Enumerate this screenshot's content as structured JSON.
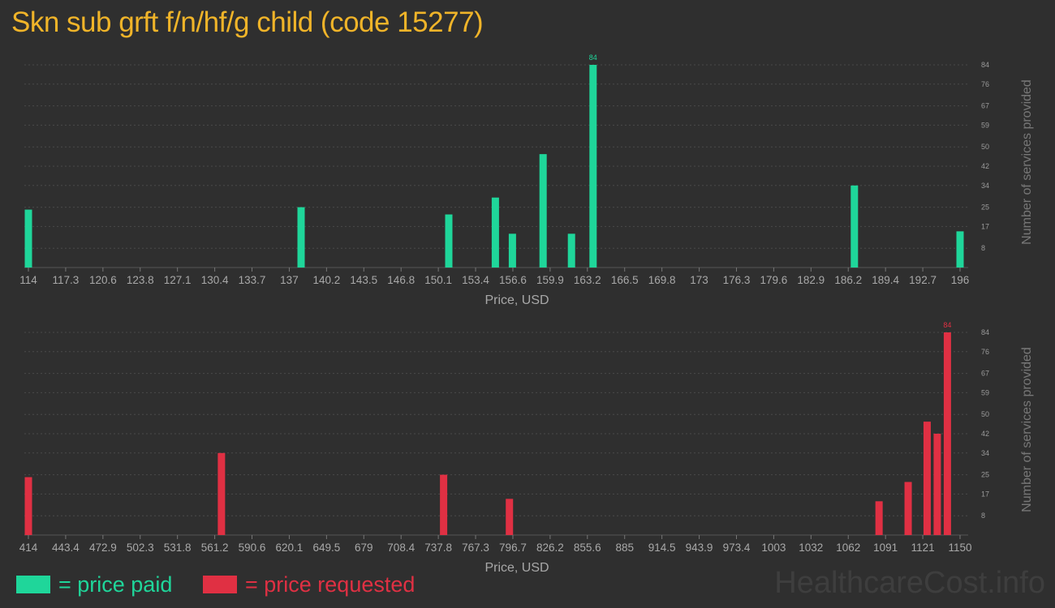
{
  "title": "Skn sub grft f/n/hf/g child (code 15277)",
  "colors": {
    "paid": "#1fd69a",
    "requested": "#e03043",
    "title": "#f0b429"
  },
  "legend": {
    "paid_label": "= price paid",
    "requested_label": "= price requested"
  },
  "watermark": "HealthcareCost.info",
  "chart_data": [
    {
      "type": "bar",
      "xlabel": "Price, USD",
      "ylabel": "Number of services provided",
      "xlim": [
        114,
        196
      ],
      "ylim": [
        0,
        84
      ],
      "x_ticks": [
        "114",
        "117.3",
        "120.6",
        "123.8",
        "127.1",
        "130.4",
        "133.7",
        "137",
        "140.2",
        "143.5",
        "146.8",
        "150.1",
        "153.4",
        "156.6",
        "159.9",
        "163.2",
        "166.5",
        "169.8",
        "173",
        "176.3",
        "179.6",
        "182.9",
        "186.2",
        "189.4",
        "192.7",
        "196"
      ],
      "y_ticks": [
        8,
        17,
        25,
        34,
        42,
        50,
        59,
        67,
        76,
        84
      ],
      "bar_label": "84",
      "bars": [
        {
          "x": 114,
          "value": 24
        },
        {
          "x": 138,
          "value": 25
        },
        {
          "x": 151,
          "value": 22
        },
        {
          "x": 155.1,
          "value": 29
        },
        {
          "x": 156.6,
          "value": 14
        },
        {
          "x": 159.3,
          "value": 47
        },
        {
          "x": 161.8,
          "value": 14
        },
        {
          "x": 163.7,
          "value": 84
        },
        {
          "x": 186.7,
          "value": 34
        },
        {
          "x": 196,
          "value": 15
        }
      ]
    },
    {
      "type": "bar",
      "xlabel": "Price, USD",
      "ylabel": "Number of services provided",
      "xlim": [
        414,
        1150
      ],
      "ylim": [
        0,
        84
      ],
      "x_ticks": [
        "414",
        "443.4",
        "472.9",
        "502.3",
        "531.8",
        "561.2",
        "590.6",
        "620.1",
        "649.5",
        "679",
        "708.4",
        "737.8",
        "767.3",
        "796.7",
        "826.2",
        "855.6",
        "885",
        "914.5",
        "943.9",
        "973.4",
        "1003",
        "1032",
        "1062",
        "1091",
        "1121",
        "1150"
      ],
      "y_ticks": [
        8,
        17,
        25,
        34,
        42,
        50,
        59,
        67,
        76,
        84
      ],
      "bar_label": "84",
      "bars": [
        {
          "x": 414,
          "value": 24
        },
        {
          "x": 566.5,
          "value": 34
        },
        {
          "x": 742,
          "value": 25
        },
        {
          "x": 794,
          "value": 15
        },
        {
          "x": 1086,
          "value": 14
        },
        {
          "x": 1109,
          "value": 22
        },
        {
          "x": 1124,
          "value": 47
        },
        {
          "x": 1132,
          "value": 42
        },
        {
          "x": 1140,
          "value": 84
        }
      ]
    }
  ]
}
